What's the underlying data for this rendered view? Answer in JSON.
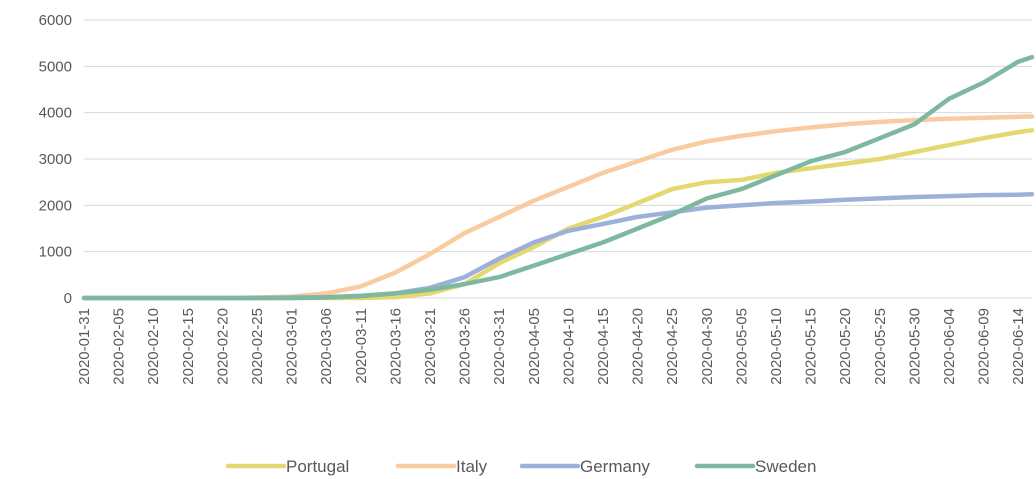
{
  "chart_data": {
    "type": "line",
    "title": "",
    "xlabel": "",
    "ylabel": "",
    "ylim": [
      0,
      6000
    ],
    "yticks": [
      0,
      1000,
      2000,
      3000,
      4000,
      5000,
      6000
    ],
    "grid": "horizontal",
    "legend_position": "bottom",
    "x_start": "2020-01-31",
    "x_end": "2020-06-16",
    "xtick_labels": [
      "2020-01-31",
      "2020-02-05",
      "2020-02-10",
      "2020-02-15",
      "2020-02-20",
      "2020-02-25",
      "2020-03-01",
      "2020-03-06",
      "2020-03-11",
      "2020-03-16",
      "2020-03-21",
      "2020-03-26",
      "2020-03-31",
      "2020-04-05",
      "2020-04-10",
      "2020-04-15",
      "2020-04-20",
      "2020-04-25",
      "2020-04-30",
      "2020-05-05",
      "2020-05-10",
      "2020-05-15",
      "2020-05-20",
      "2020-05-25",
      "2020-05-30",
      "2020-06-04",
      "2020-06-09",
      "2020-06-14"
    ],
    "series": [
      {
        "name": "Portugal",
        "color": "#E3D970",
        "points": [
          [
            "2020-01-31",
            0
          ],
          [
            "2020-03-11",
            0
          ],
          [
            "2020-03-16",
            20
          ],
          [
            "2020-03-21",
            100
          ],
          [
            "2020-03-26",
            300
          ],
          [
            "2020-03-31",
            750
          ],
          [
            "2020-04-05",
            1100
          ],
          [
            "2020-04-10",
            1500
          ],
          [
            "2020-04-15",
            1750
          ],
          [
            "2020-04-20",
            2050
          ],
          [
            "2020-04-25",
            2350
          ],
          [
            "2020-04-30",
            2500
          ],
          [
            "2020-05-05",
            2550
          ],
          [
            "2020-05-10",
            2700
          ],
          [
            "2020-05-15",
            2800
          ],
          [
            "2020-05-20",
            2900
          ],
          [
            "2020-05-25",
            3000
          ],
          [
            "2020-05-30",
            3150
          ],
          [
            "2020-06-04",
            3300
          ],
          [
            "2020-06-09",
            3450
          ],
          [
            "2020-06-14",
            3580
          ],
          [
            "2020-06-16",
            3620
          ]
        ]
      },
      {
        "name": "Italy",
        "color": "#F9CBA0",
        "points": [
          [
            "2020-01-31",
            0
          ],
          [
            "2020-02-20",
            0
          ],
          [
            "2020-02-25",
            10
          ],
          [
            "2020-03-01",
            30
          ],
          [
            "2020-03-06",
            100
          ],
          [
            "2020-03-11",
            250
          ],
          [
            "2020-03-16",
            550
          ],
          [
            "2020-03-21",
            950
          ],
          [
            "2020-03-26",
            1400
          ],
          [
            "2020-03-31",
            1750
          ],
          [
            "2020-04-05",
            2100
          ],
          [
            "2020-04-10",
            2400
          ],
          [
            "2020-04-15",
            2700
          ],
          [
            "2020-04-20",
            2950
          ],
          [
            "2020-04-25",
            3200
          ],
          [
            "2020-04-30",
            3380
          ],
          [
            "2020-05-05",
            3500
          ],
          [
            "2020-05-10",
            3600
          ],
          [
            "2020-05-15",
            3680
          ],
          [
            "2020-05-20",
            3750
          ],
          [
            "2020-05-25",
            3800
          ],
          [
            "2020-05-30",
            3840
          ],
          [
            "2020-06-04",
            3870
          ],
          [
            "2020-06-09",
            3890
          ],
          [
            "2020-06-14",
            3910
          ],
          [
            "2020-06-16",
            3920
          ]
        ]
      },
      {
        "name": "Germany",
        "color": "#9DB0DA",
        "points": [
          [
            "2020-01-31",
            0
          ],
          [
            "2020-02-25",
            0
          ],
          [
            "2020-03-01",
            10
          ],
          [
            "2020-03-06",
            20
          ],
          [
            "2020-03-11",
            50
          ],
          [
            "2020-03-16",
            100
          ],
          [
            "2020-03-21",
            220
          ],
          [
            "2020-03-26",
            450
          ],
          [
            "2020-03-31",
            850
          ],
          [
            "2020-04-05",
            1200
          ],
          [
            "2020-04-10",
            1450
          ],
          [
            "2020-04-15",
            1600
          ],
          [
            "2020-04-20",
            1750
          ],
          [
            "2020-04-25",
            1850
          ],
          [
            "2020-04-30",
            1950
          ],
          [
            "2020-05-05",
            2000
          ],
          [
            "2020-05-10",
            2050
          ],
          [
            "2020-05-15",
            2080
          ],
          [
            "2020-05-20",
            2120
          ],
          [
            "2020-05-25",
            2150
          ],
          [
            "2020-05-30",
            2180
          ],
          [
            "2020-06-04",
            2200
          ],
          [
            "2020-06-09",
            2220
          ],
          [
            "2020-06-14",
            2230
          ],
          [
            "2020-06-16",
            2240
          ]
        ]
      },
      {
        "name": "Sweden",
        "color": "#7FB8A0",
        "points": [
          [
            "2020-01-31",
            0
          ],
          [
            "2020-03-01",
            0
          ],
          [
            "2020-03-06",
            10
          ],
          [
            "2020-03-11",
            40
          ],
          [
            "2020-03-16",
            100
          ],
          [
            "2020-03-21",
            180
          ],
          [
            "2020-03-26",
            300
          ],
          [
            "2020-03-31",
            450
          ],
          [
            "2020-04-05",
            700
          ],
          [
            "2020-04-10",
            950
          ],
          [
            "2020-04-15",
            1200
          ],
          [
            "2020-04-20",
            1500
          ],
          [
            "2020-04-25",
            1800
          ],
          [
            "2020-04-30",
            2150
          ],
          [
            "2020-05-05",
            2350
          ],
          [
            "2020-05-10",
            2650
          ],
          [
            "2020-05-15",
            2950
          ],
          [
            "2020-05-20",
            3150
          ],
          [
            "2020-05-25",
            3450
          ],
          [
            "2020-05-30",
            3750
          ],
          [
            "2020-06-04",
            4300
          ],
          [
            "2020-06-09",
            4650
          ],
          [
            "2020-06-14",
            5100
          ],
          [
            "2020-06-16",
            5200
          ]
        ]
      }
    ]
  }
}
